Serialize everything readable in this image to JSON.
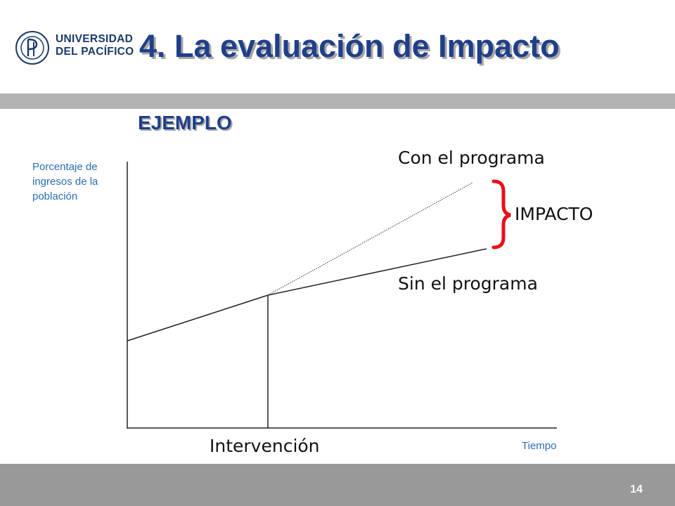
{
  "logo": {
    "line1": "UNIVERSIDAD",
    "line2": "DEL PACÍFICO"
  },
  "title": "4. La evaluación de Impacto",
  "subtitle": "EJEMPLO",
  "diagram": {
    "y_axis_label": "Porcentaje de ingresos de la población",
    "x_axis_label": "Tiempo",
    "intervention_label": "Intervención",
    "with_program_label": "Con el programa",
    "without_program_label": "Sin el programa",
    "impact_label": "IMPACTO",
    "brace_color": "#e8101a"
  },
  "footer": {
    "page_number": "14"
  }
}
